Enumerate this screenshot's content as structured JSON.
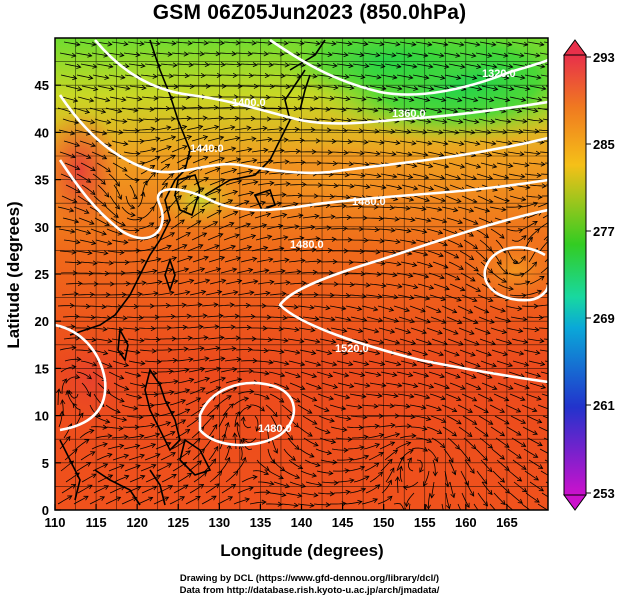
{
  "title": "GSM 06Z05Jun2023 (850.0hPa)",
  "axes": {
    "x_label": "Longitude (degrees)",
    "y_label": "Latitude  (degrees)",
    "x_ticks": [
      "110",
      "115",
      "120",
      "125",
      "130",
      "135",
      "140",
      "145",
      "150",
      "155",
      "160",
      "165"
    ],
    "y_ticks": [
      "0",
      "5",
      "10",
      "15",
      "20",
      "25",
      "30",
      "35",
      "40",
      "45"
    ]
  },
  "colorbar": {
    "labels": [
      "293",
      "285",
      "277",
      "269",
      "261",
      "253"
    ],
    "colors": [
      "#e8304a",
      "#f07a20",
      "#f5c018",
      "#33cc22",
      "#0aa8d8",
      "#2233cc",
      "#cc11cc"
    ]
  },
  "contour_labels": [
    "1320.0",
    "1360.0",
    "1400.0",
    "1440.0",
    "1480.0",
    "1520.0",
    "1480.0",
    "1480.0"
  ],
  "credits": {
    "line1": "Drawing by DCL (https://www.gfd-dennou.org/library/dcl/)",
    "line2": "Data from http://database.rish.kyoto-u.ac.jp/arch/jmadata/"
  }
}
